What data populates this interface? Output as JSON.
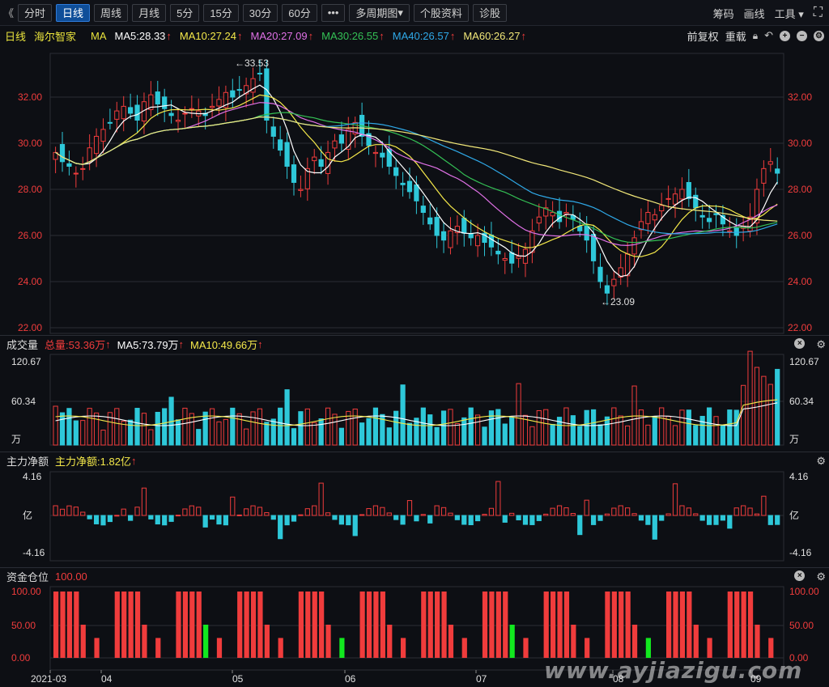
{
  "toolbar": {
    "back_glyph": "《",
    "buttons": [
      "分时",
      "日线",
      "周线",
      "月线",
      "5分",
      "15分",
      "30分",
      "60分",
      "•••",
      "多周期图",
      "个股资料",
      "诊股"
    ],
    "active_index": 1,
    "dropdown_index": 9,
    "right": [
      "筹码",
      "画线",
      "工具"
    ],
    "fullscreen_glyph": "⛶"
  },
  "info": {
    "period": "日线",
    "stock": "海尔智家",
    "ma_label": "MA",
    "ma": [
      {
        "text": "MA5:28.33",
        "color": "#ffffff"
      },
      {
        "text": "MA10:27.24",
        "color": "#f5e94a"
      },
      {
        "text": "MA20:27.09",
        "color": "#e071e6"
      },
      {
        "text": "MA30:26.55",
        "color": "#34c155"
      },
      {
        "text": "MA40:26.57",
        "color": "#2fa9e8"
      },
      {
        "text": "MA60:26.27",
        "color": "#f2e879"
      }
    ],
    "adjust": "前复权",
    "reload": "重载"
  },
  "price": {
    "axis": [
      "32.00",
      "30.00",
      "28.00",
      "26.00",
      "24.00",
      "22.00"
    ],
    "high_label": "←33.53",
    "low_label": "←23.09"
  },
  "volume": {
    "title": "成交量",
    "total": "总量:53.36万",
    "ma5": "MA5:73.79万",
    "ma10": "MA10:49.66万",
    "axis": [
      "120.67",
      "60.34",
      "万"
    ]
  },
  "netflow": {
    "title": "主力净额",
    "value": "主力净额:1.82亿",
    "axis": [
      "4.16",
      "亿",
      "-4.16"
    ]
  },
  "position": {
    "title": "资金仓位",
    "value": "100.00",
    "axis": [
      "100.00",
      "50.00",
      "0.00"
    ]
  },
  "xaxis": [
    "2021-03",
    "04",
    "05",
    "06",
    "07",
    "08",
    "09"
  ],
  "watermark": "www.ayjiazigu.com",
  "colors": {
    "up": "#f03c3c",
    "down": "#2ec8d9",
    "green": "#12e81f",
    "grid": "#2a2d35"
  }
}
